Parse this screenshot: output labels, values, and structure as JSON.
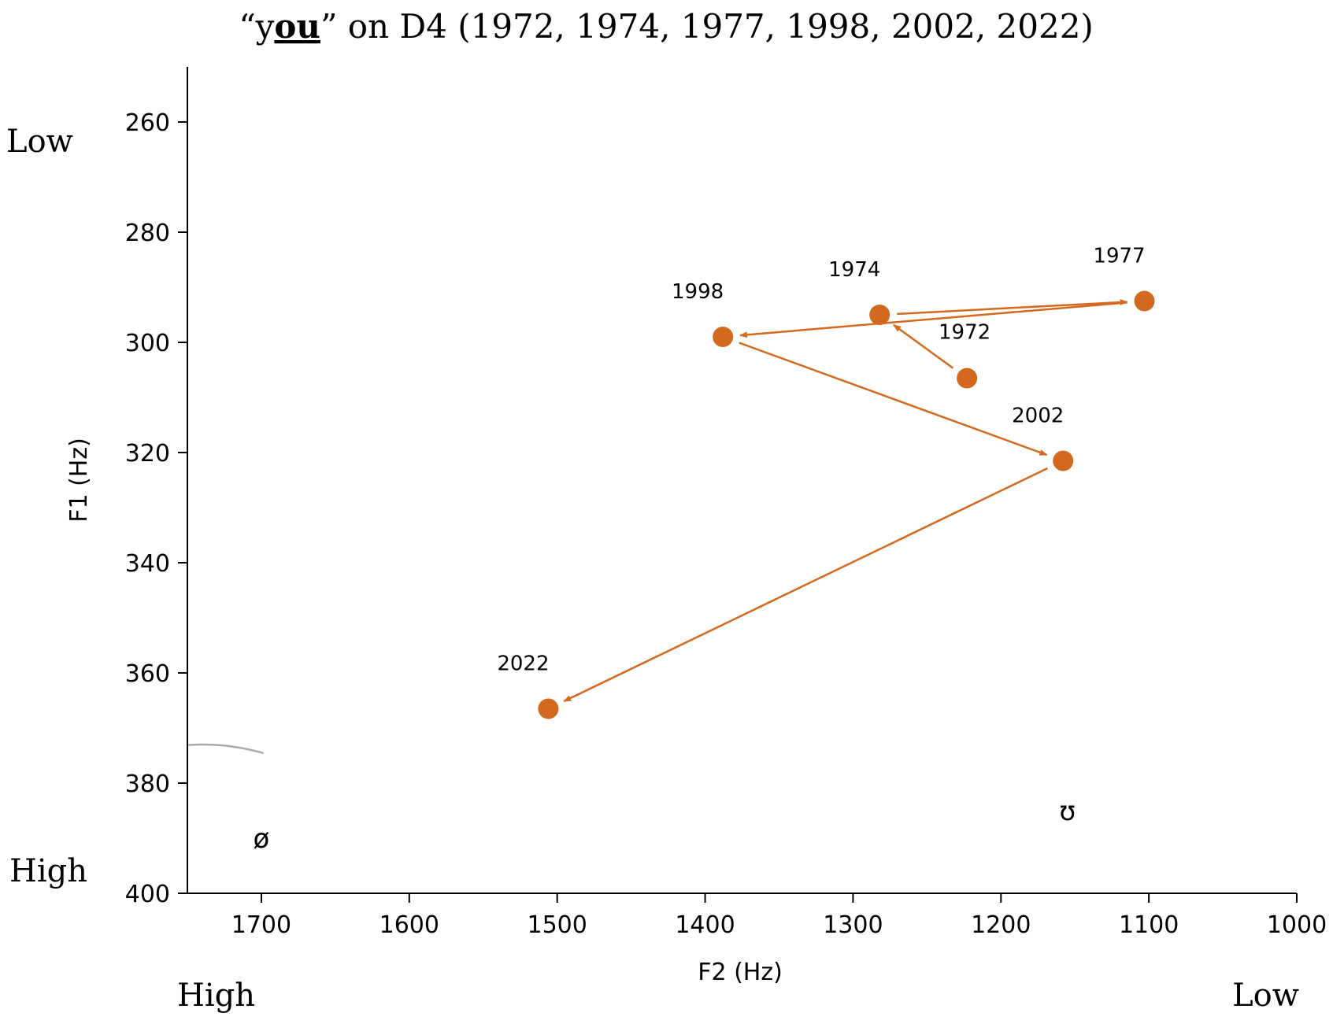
{
  "chart_data": {
    "type": "scatter",
    "title": {
      "pre": "“y",
      "emph": "ou",
      "post": "” on D4 (1972, 1974, 1977, 1998, 2002, 2022)"
    },
    "xlabel": "F2 (Hz)",
    "ylabel": "F1 (Hz)",
    "xlim": [
      1750,
      1000
    ],
    "ylim": [
      250,
      400
    ],
    "x_inverted": true,
    "y_inverted": true,
    "xticks": [
      1700,
      1600,
      1500,
      1400,
      1300,
      1200,
      1100,
      1000
    ],
    "yticks": [
      260,
      280,
      300,
      320,
      340,
      360,
      380,
      400
    ],
    "x_end_labels": {
      "left": "High",
      "right": "Low"
    },
    "y_end_labels": {
      "top": "Low",
      "bottom": "High"
    },
    "grid": false,
    "color": "#d2691e",
    "points": [
      {
        "label": "1972",
        "f2": 1223,
        "f1": 306.5
      },
      {
        "label": "1974",
        "f2": 1282,
        "f1": 295
      },
      {
        "label": "1977",
        "f2": 1103,
        "f1": 292.5
      },
      {
        "label": "1998",
        "f2": 1388,
        "f1": 299
      },
      {
        "label": "2002",
        "f2": 1158,
        "f1": 321.5
      },
      {
        "label": "2022",
        "f2": 1506,
        "f1": 366.5
      }
    ],
    "trajectory_order": [
      "1972",
      "1974",
      "1977",
      "1998",
      "2002",
      "2022"
    ],
    "vowel_regions": [
      {
        "symbol": "ø",
        "f2": 1700,
        "f1": 390
      },
      {
        "symbol": "ʊ",
        "f2": 1155,
        "f1": 385
      }
    ],
    "boundary_color": "#aaaaaa"
  }
}
